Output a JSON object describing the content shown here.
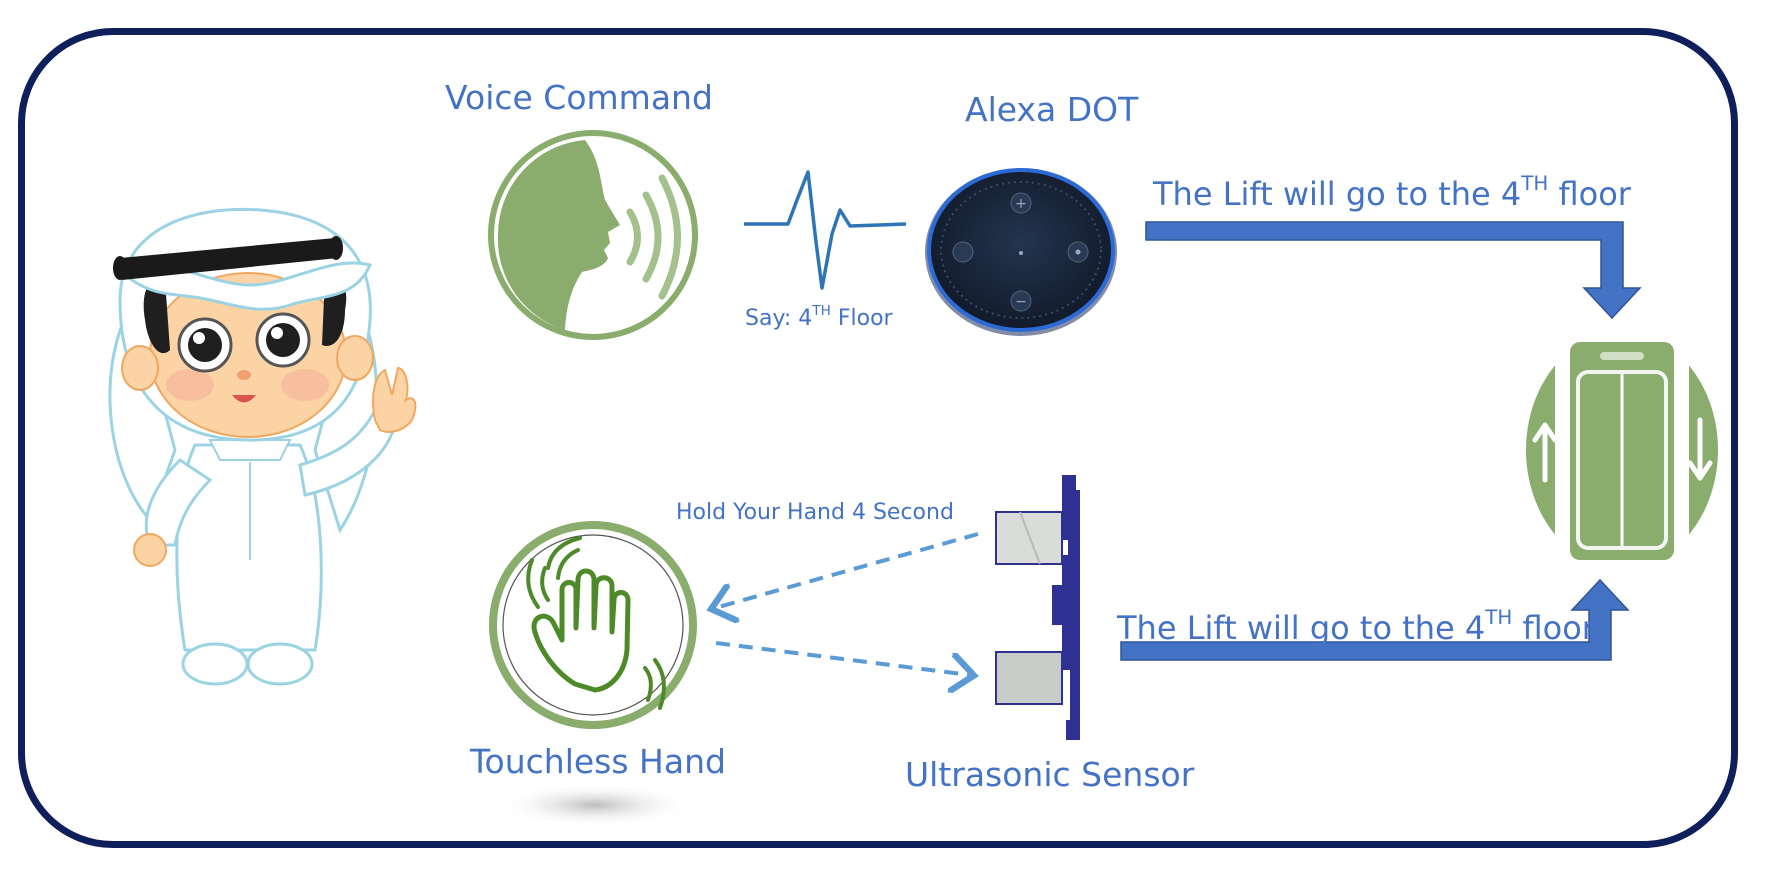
{
  "labels": {
    "voice_command": "Voice Command",
    "alexa": "Alexa DOT",
    "say_prefix": "Say: 4",
    "say_sup": "TH",
    "say_suffix": " Floor",
    "hold_hand": "Hold Your Hand 4 Second",
    "touchless": "Touchless Hand",
    "ultrasonic": "Ultrasonic Sensor",
    "lift_top_prefix": "The Lift will go to the 4",
    "lift_top_sup": "TH",
    "lift_top_suffix": " floor",
    "lift_bottom_prefix": "The Lift will go to the 4",
    "lift_bottom_sup": "TH",
    "lift_bottom_suffix": " floor"
  },
  "colors": {
    "frame": "#0f1f5c",
    "text": "#4472c4",
    "arrow": "#4472c4",
    "dashed": "#5b9bd5",
    "green": "#8aad6e",
    "hand_green": "#4e8a2a",
    "sensor_navy": "#2e3192"
  },
  "icons": [
    "child-character-icon",
    "speaking-head-icon",
    "sound-wave-icon",
    "alexa-dot-icon",
    "elevator-icon",
    "touchless-hand-icon",
    "ultrasonic-sensor-icon"
  ]
}
